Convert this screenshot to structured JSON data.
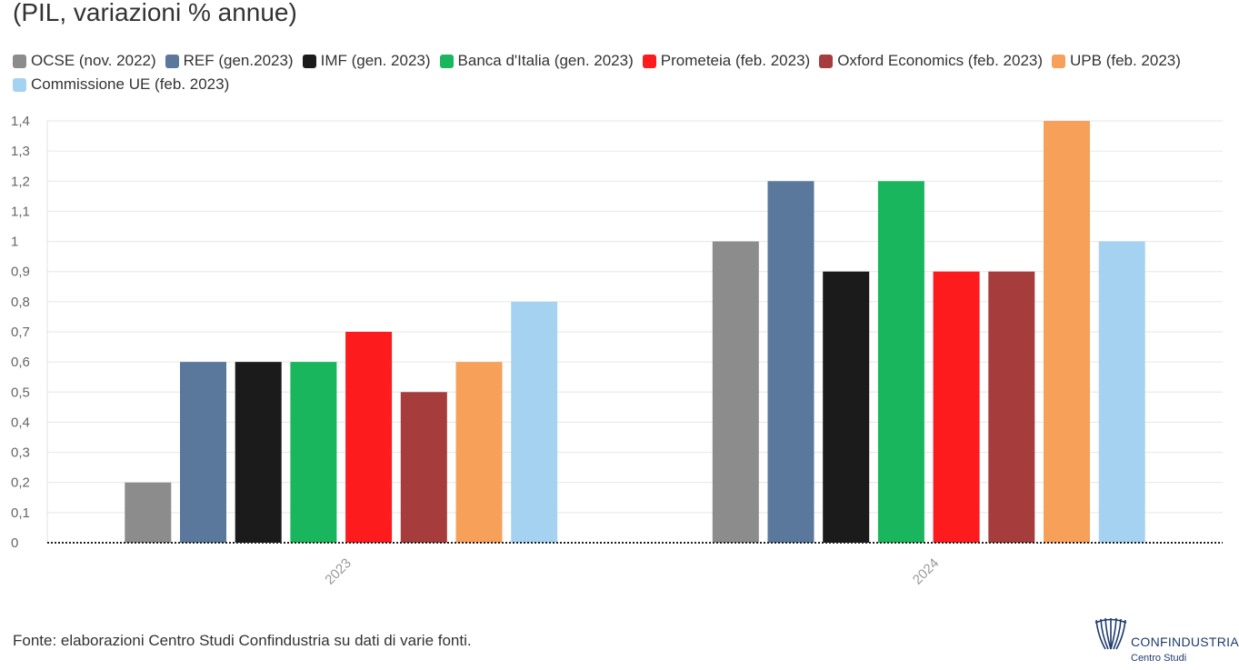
{
  "subtitle": "(PIL, variazioni % annue)",
  "source": "Fonte: elaborazioni Centro Studi Confindustria su dati di varie fonti.",
  "logo": {
    "name": "CONFINDUSTRIA",
    "sub": "Centro Studi"
  },
  "chart_data": {
    "type": "bar",
    "title": "(PIL, variazioni % annue)",
    "xlabel": "",
    "ylabel": "",
    "categories": [
      "2023",
      "2024"
    ],
    "ylim": [
      0,
      1.4
    ],
    "yticks": [
      "0",
      "0,1",
      "0,2",
      "0,3",
      "0,4",
      "0,5",
      "0,6",
      "0,7",
      "0,8",
      "0,9",
      "1",
      "1,1",
      "1,2",
      "1,3",
      "1,4"
    ],
    "legend_position": "top-left",
    "grid": true,
    "series": [
      {
        "name": "OCSE (nov. 2022)",
        "color": "#8c8c8c",
        "values": [
          0.2,
          1.0
        ]
      },
      {
        "name": "REF (gen.2023)",
        "color": "#5a779c",
        "values": [
          0.6,
          1.2
        ]
      },
      {
        "name": "IMF (gen. 2023)",
        "color": "#1b1b1b",
        "values": [
          0.6,
          0.9
        ]
      },
      {
        "name": "Banca d'Italia (gen. 2023)",
        "color": "#1ab65d",
        "values": [
          0.6,
          1.2
        ]
      },
      {
        "name": "Prometeia (feb. 2023)",
        "color": "#fd1b1e",
        "values": [
          0.7,
          0.9
        ]
      },
      {
        "name": "Oxford Economics (feb. 2023)",
        "color": "#a63c3c",
        "values": [
          0.5,
          0.9
        ]
      },
      {
        "name": "UPB (feb. 2023)",
        "color": "#f7a05a",
        "values": [
          0.6,
          1.4
        ]
      },
      {
        "name": "Commissione UE (feb. 2023)",
        "color": "#a6d2f2",
        "values": [
          0.8,
          1.0
        ]
      }
    ]
  }
}
